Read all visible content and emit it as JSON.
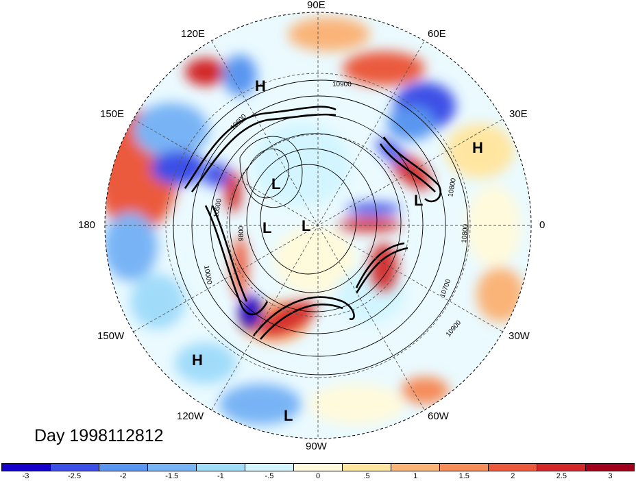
{
  "title": "Day 1998112812",
  "longitude_labels": {
    "90e": "90E",
    "120e": "120E",
    "60e": "60E",
    "150e": "150E",
    "30e": "30E",
    "180": "180",
    "0": "0",
    "150w": "150W",
    "30w": "30W",
    "120w": "120W",
    "60w": "60W",
    "90w": "90W"
  },
  "pressure_systems": [
    {
      "type": "H",
      "name": "high-120e"
    },
    {
      "type": "H",
      "name": "high-30e"
    },
    {
      "type": "L",
      "name": "low-siberia"
    },
    {
      "type": "L",
      "name": "low-europe"
    },
    {
      "type": "L",
      "name": "low-pole-west"
    },
    {
      "type": "L",
      "name": "low-pole"
    },
    {
      "type": "H",
      "name": "high-150w"
    },
    {
      "type": "L",
      "name": "low-90w"
    }
  ],
  "contour_labels": [
    "10900",
    "10800",
    "10800",
    "10700",
    "10900",
    "9800",
    "10500",
    "10000",
    "10600"
  ],
  "colorbar": {
    "colors": [
      "#1400c8",
      "#3c50e6",
      "#5a96f0",
      "#78b4f5",
      "#a0dcfa",
      "#d2f5ff",
      "#fffadc",
      "#ffe6a0",
      "#fab478",
      "#f58c5a",
      "#eb5a3c",
      "#d22828",
      "#a0001e"
    ],
    "ticks": [
      "-3",
      "-2.5",
      "-2",
      "-1.5",
      "-1",
      "-.5",
      "0",
      ".5",
      "1",
      "1.5",
      "2",
      "2.5",
      "3"
    ]
  }
}
